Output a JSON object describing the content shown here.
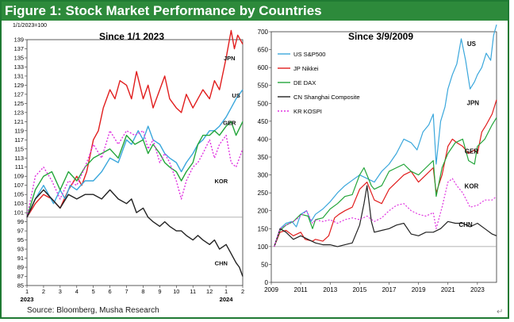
{
  "figure": {
    "title": "Figure 1: Stock Market Performance by Countries",
    "source": "Source: Bloomberg, Musha Research",
    "corner_icon": "resize-corner-icon",
    "colors": {
      "frame": "#1f7a33",
      "title_bg": "#2d8a3b",
      "title_text": "#ffffff"
    }
  },
  "chart_data": [
    {
      "type": "line",
      "title": "Since 1/1 2023",
      "index_note": "1/1/2023=100",
      "y_range": [
        85,
        139
      ],
      "y_ticks": [
        "85",
        "87",
        "89",
        "91",
        "93",
        "95",
        "97",
        "99",
        "101",
        "103",
        "105",
        "107",
        "109",
        "111",
        "113",
        "115",
        "117",
        "119",
        "121",
        "123",
        "125",
        "127",
        "129",
        "131",
        "133",
        "135",
        "137",
        "139"
      ],
      "x_range": [
        1,
        14
      ],
      "x_ticks": [
        "1",
        "2",
        "3",
        "4",
        "5",
        "6",
        "7",
        "8",
        "9",
        "10",
        "11",
        "12",
        "1",
        "2"
      ],
      "x_year_labels": [
        {
          "x": 1,
          "label": "2023"
        },
        {
          "x": 13,
          "label": "2024"
        }
      ],
      "reference_line": 100,
      "series": [
        {
          "name": "JPN",
          "color": "#e11d1d",
          "label": {
            "text": "JPN",
            "x": 13.2,
            "y": 134.5
          },
          "x": [
            1,
            1.5,
            2,
            2.5,
            3,
            3.5,
            4,
            4.3,
            4.6,
            5,
            5.3,
            5.6,
            6,
            6.3,
            6.6,
            7,
            7.3,
            7.6,
            8,
            8.3,
            8.6,
            9,
            9.3,
            9.6,
            10,
            10.3,
            10.6,
            11,
            11.3,
            11.6,
            12,
            12.3,
            12.6,
            13,
            13.3,
            13.5,
            13.7,
            14
          ],
          "y": [
            100,
            103,
            105,
            104,
            102,
            106,
            109,
            107,
            110,
            117,
            119,
            124,
            128,
            126,
            130,
            129,
            126,
            132,
            126,
            129,
            124,
            128,
            131,
            126,
            124,
            123,
            127,
            124,
            126,
            128,
            126,
            130,
            128,
            135,
            141,
            137,
            140,
            138
          ]
        },
        {
          "name": "US",
          "color": "#3aa7dc",
          "label": {
            "text": "US",
            "x": 13.6,
            "y": 126.3
          },
          "x": [
            1,
            1.5,
            2,
            2.3,
            2.6,
            3,
            3.3,
            3.6,
            4,
            4.5,
            5,
            5.5,
            6,
            6.5,
            7,
            7.3,
            7.7,
            8,
            8.3,
            8.6,
            9,
            9.3,
            9.6,
            10,
            10.3,
            10.6,
            11,
            11.3,
            11.6,
            12,
            12.3,
            12.6,
            13,
            13.3,
            13.6,
            14
          ],
          "y": [
            100,
            104,
            107,
            105,
            103,
            106,
            104,
            107,
            106,
            108,
            108,
            110,
            113,
            112,
            117,
            116,
            119,
            117,
            120,
            117,
            116,
            114,
            113,
            112,
            110,
            112,
            114,
            116,
            117,
            119,
            119,
            120,
            122,
            124,
            126,
            128
          ]
        },
        {
          "name": "GER",
          "color": "#23a53a",
          "label": {
            "text": "GER",
            "x": 13.2,
            "y": 120.3
          },
          "x": [
            1,
            1.5,
            2,
            2.5,
            3,
            3.5,
            4,
            4.5,
            5,
            5.5,
            6,
            6.5,
            7,
            7.5,
            8,
            8.3,
            8.6,
            9,
            9.3,
            9.6,
            10,
            10.3,
            10.6,
            11,
            11.3,
            11.6,
            12,
            12.3,
            12.6,
            13,
            13.3,
            13.6,
            14
          ],
          "y": [
            100,
            106,
            109,
            110,
            106,
            110,
            108,
            111,
            113,
            114,
            115,
            113,
            118,
            116,
            117,
            114,
            116,
            114,
            112,
            111,
            110,
            108,
            110,
            112,
            116,
            118,
            118,
            119,
            118,
            120,
            121,
            118,
            121
          ]
        },
        {
          "name": "KOR",
          "color": "#e033e0",
          "dash": "2,2",
          "label": {
            "text": "KOR",
            "x": 12.7,
            "y": 107.5
          },
          "x": [
            1,
            1.5,
            2,
            2.5,
            3,
            3.5,
            4,
            4.5,
            5,
            5.5,
            6,
            6.5,
            7,
            7.5,
            8,
            8.3,
            8.6,
            9,
            9.3,
            9.6,
            10,
            10.3,
            10.6,
            11,
            11.3,
            11.6,
            12,
            12.3,
            12.6,
            13,
            13.3,
            13.6,
            14
          ],
          "y": [
            100,
            109,
            111,
            108,
            104,
            108,
            107,
            111,
            116,
            113,
            119,
            116,
            119,
            118,
            119,
            115,
            117,
            112,
            114,
            112,
            108,
            104,
            108,
            111,
            112,
            114,
            117,
            113,
            116,
            118,
            112,
            111,
            115
          ]
        },
        {
          "name": "CHN",
          "color": "#222222",
          "label": {
            "text": "CHN",
            "x": 12.7,
            "y": 89.4
          },
          "x": [
            1,
            1.5,
            2,
            2.5,
            3,
            3.5,
            4,
            4.5,
            5,
            5.5,
            6,
            6.5,
            7,
            7.3,
            7.6,
            8,
            8.3,
            8.6,
            9,
            9.3,
            9.6,
            10,
            10.3,
            10.6,
            11,
            11.3,
            11.6,
            12,
            12.3,
            12.6,
            13,
            13.3,
            13.6,
            13.8,
            14
          ],
          "y": [
            100,
            104,
            106,
            104,
            102,
            105,
            104,
            105,
            105,
            104,
            106,
            104,
            103,
            104,
            101,
            102,
            100,
            99,
            98,
            99,
            98,
            97,
            97,
            96,
            95,
            96,
            95,
            94,
            95,
            93,
            94,
            92,
            90,
            89,
            87
          ]
        }
      ]
    },
    {
      "type": "line",
      "title": "Since 3/9/2009",
      "y_range": [
        0,
        700
      ],
      "y_ticks": [
        "0",
        "50",
        "100",
        "150",
        "200",
        "250",
        "300",
        "350",
        "400",
        "450",
        "500",
        "550",
        "600",
        "650",
        "700"
      ],
      "x_range": [
        2009,
        2024.3
      ],
      "x_ticks": [
        "2009",
        "2011",
        "2013",
        "2015",
        "2017",
        "2019",
        "2021",
        "2023"
      ],
      "reference_line": 100,
      "legend": {
        "placement": "top-left",
        "entries": [
          "US S&P500",
          "JP Nikkei",
          "DE DAX",
          "CN Shanghai Composite",
          "KR KOSPI"
        ]
      },
      "series": [
        {
          "name": "US S&P500",
          "short": "US",
          "color": "#3aa7dc",
          "label": {
            "text": "US",
            "x": 2022.6,
            "y": 660
          },
          "x": [
            2009.2,
            2009.6,
            2010,
            2010.4,
            2010.7,
            2011,
            2011.4,
            2011.7,
            2012,
            2012.5,
            2013,
            2013.5,
            2014,
            2014.5,
            2015,
            2015.5,
            2016,
            2016.5,
            2017,
            2017.5,
            2018,
            2018.5,
            2018.9,
            2019.3,
            2019.7,
            2020,
            2020.2,
            2020.5,
            2020.8,
            2021,
            2021.3,
            2021.6,
            2021.9,
            2022.2,
            2022.5,
            2022.8,
            2023,
            2023.3,
            2023.6,
            2023.9,
            2024.1,
            2024.3
          ],
          "y": [
            100,
            150,
            165,
            170,
            155,
            190,
            200,
            170,
            190,
            205,
            225,
            250,
            270,
            285,
            300,
            290,
            280,
            310,
            330,
            360,
            400,
            390,
            370,
            420,
            440,
            470,
            330,
            450,
            490,
            540,
            580,
            610,
            680,
            620,
            540,
            560,
            580,
            600,
            640,
            620,
            690,
            720
          ]
        },
        {
          "name": "JP Nikkei",
          "short": "JPN",
          "color": "#e11d1d",
          "label": {
            "text": "JPN",
            "x": 2022.7,
            "y": 495
          },
          "x": [
            2009.2,
            2009.6,
            2010,
            2010.5,
            2011,
            2011.3,
            2011.8,
            2012,
            2012.5,
            2012.9,
            2013.3,
            2013.6,
            2014,
            2014.5,
            2015,
            2015.5,
            2016,
            2016.5,
            2017,
            2017.5,
            2018,
            2018.5,
            2019,
            2019.5,
            2020,
            2020.2,
            2020.6,
            2021,
            2021.3,
            2021.6,
            2022,
            2022.4,
            2022.8,
            2023,
            2023.3,
            2023.6,
            2024,
            2024.3
          ],
          "y": [
            100,
            140,
            145,
            130,
            140,
            120,
            115,
            120,
            115,
            130,
            180,
            190,
            200,
            210,
            260,
            280,
            230,
            220,
            260,
            280,
            300,
            310,
            280,
            300,
            320,
            250,
            300,
            380,
            400,
            390,
            380,
            360,
            370,
            360,
            420,
            440,
            470,
            510
          ]
        },
        {
          "name": "DE DAX",
          "short": "GER",
          "color": "#23a53a",
          "label": {
            "text": "GER",
            "x": 2022.6,
            "y": 360
          },
          "x": [
            2009.2,
            2009.6,
            2010,
            2010.5,
            2011,
            2011.5,
            2011.8,
            2012,
            2012.5,
            2013,
            2013.5,
            2014,
            2014.5,
            2015,
            2015.3,
            2015.8,
            2016,
            2016.5,
            2017,
            2017.5,
            2018,
            2018.5,
            2019,
            2019.5,
            2020,
            2020.2,
            2020.6,
            2021,
            2021.5,
            2022,
            2022.4,
            2022.8,
            2023,
            2023.5,
            2024,
            2024.3
          ],
          "y": [
            100,
            145,
            160,
            170,
            190,
            185,
            150,
            175,
            180,
            205,
            220,
            240,
            245,
            300,
            320,
            270,
            260,
            270,
            310,
            320,
            330,
            310,
            300,
            320,
            340,
            240,
            320,
            360,
            390,
            400,
            340,
            330,
            380,
            400,
            440,
            460
          ]
        },
        {
          "name": "CN Shanghai Composite",
          "short": "CHN",
          "color": "#222222",
          "label": {
            "text": "CHN",
            "x": 2022.2,
            "y": 155
          },
          "x": [
            2009.2,
            2009.6,
            2010,
            2010.5,
            2011,
            2011.5,
            2012,
            2012.5,
            2013,
            2013.5,
            2014,
            2014.5,
            2015,
            2015.3,
            2015.5,
            2015.8,
            2016,
            2016.5,
            2017,
            2017.5,
            2018,
            2018.5,
            2019,
            2019.5,
            2020,
            2020.5,
            2021,
            2021.5,
            2022,
            2022.5,
            2023,
            2023.5,
            2024,
            2024.3
          ],
          "y": [
            100,
            150,
            140,
            120,
            130,
            120,
            110,
            105,
            105,
            100,
            105,
            110,
            160,
            220,
            270,
            170,
            140,
            145,
            150,
            160,
            165,
            135,
            130,
            140,
            140,
            150,
            170,
            165,
            165,
            155,
            165,
            150,
            135,
            130
          ]
        },
        {
          "name": "KR KOSPI",
          "short": "KOR",
          "color": "#e033e0",
          "dash": "2,2",
          "label": {
            "text": "KOR",
            "x": 2022.6,
            "y": 262
          },
          "x": [
            2009.2,
            2009.6,
            2010,
            2010.5,
            2011,
            2011.4,
            2011.8,
            2012,
            2012.5,
            2013,
            2013.5,
            2014,
            2014.5,
            2015,
            2015.5,
            2016,
            2016.5,
            2017,
            2017.5,
            2018,
            2018.5,
            2019,
            2019.5,
            2020,
            2020.2,
            2020.6,
            2021,
            2021.3,
            2021.6,
            2022,
            2022.5,
            2023,
            2023.5,
            2024,
            2024.3
          ],
          "y": [
            100,
            150,
            160,
            170,
            185,
            200,
            165,
            175,
            170,
            175,
            165,
            175,
            180,
            175,
            185,
            170,
            180,
            200,
            215,
            220,
            200,
            190,
            185,
            195,
            150,
            210,
            280,
            290,
            270,
            250,
            210,
            215,
            230,
            230,
            240
          ]
        }
      ]
    }
  ]
}
